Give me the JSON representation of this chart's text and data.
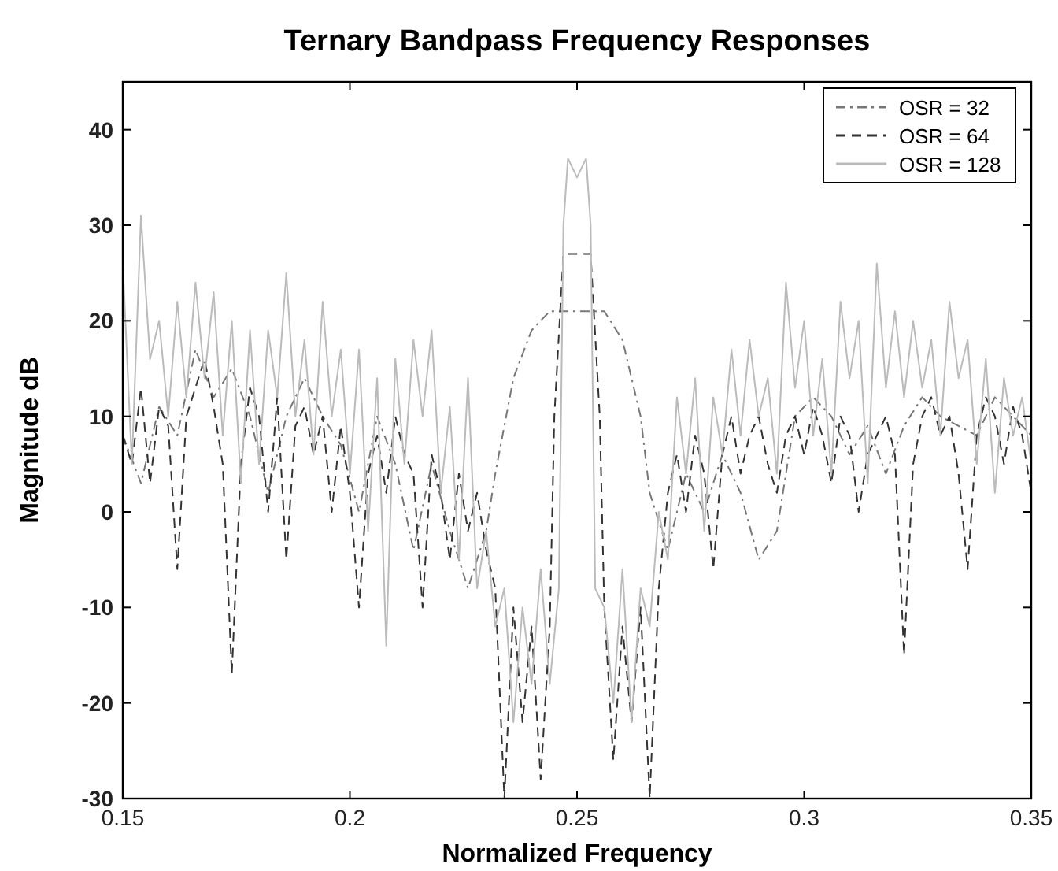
{
  "chart_data": {
    "type": "line",
    "title": "Ternary Bandpass Frequency Responses",
    "xlabel": "Normalized Frequency",
    "ylabel": "Magnitude dB",
    "xlim": [
      0.15,
      0.35
    ],
    "xticks": [
      0.15,
      0.2,
      0.25,
      0.3,
      0.35
    ],
    "ylim": [
      -30,
      45
    ],
    "yticks": [
      -30,
      -20,
      -10,
      0,
      10,
      20,
      30,
      40
    ],
    "grid": false,
    "legend": "top right",
    "series": [
      {
        "name": "OSR = 32",
        "color": "#777777",
        "line_style": "dashdot",
        "x": [
          0.15,
          0.154,
          0.158,
          0.162,
          0.166,
          0.17,
          0.174,
          0.178,
          0.182,
          0.186,
          0.19,
          0.194,
          0.198,
          0.202,
          0.206,
          0.21,
          0.214,
          0.218,
          0.222,
          0.226,
          0.23,
          0.232,
          0.236,
          0.24,
          0.244,
          0.25,
          0.256,
          0.26,
          0.264,
          0.266,
          0.27,
          0.274,
          0.278,
          0.282,
          0.286,
          0.29,
          0.294,
          0.298,
          0.302,
          0.306,
          0.31,
          0.314,
          0.318,
          0.322,
          0.326,
          0.33,
          0.334,
          0.338,
          0.342,
          0.346,
          0.35
        ],
        "values": [
          8,
          3,
          11,
          8,
          17,
          12,
          15,
          10,
          2,
          10,
          14,
          10,
          7,
          0,
          10,
          5,
          -4,
          5,
          -2,
          -8,
          -2,
          4,
          14,
          19,
          21,
          21,
          21,
          18,
          10,
          2,
          -4,
          4,
          0,
          6,
          2,
          -5,
          -2,
          10,
          12,
          10,
          6,
          9,
          4,
          9,
          12,
          10,
          9,
          8,
          12,
          10,
          8
        ]
      },
      {
        "name": "OSR = 64",
        "color": "#333333",
        "line_style": "dashed",
        "x": [
          0.15,
          0.152,
          0.154,
          0.156,
          0.158,
          0.16,
          0.162,
          0.164,
          0.166,
          0.168,
          0.17,
          0.172,
          0.174,
          0.176,
          0.178,
          0.18,
          0.182,
          0.184,
          0.186,
          0.188,
          0.19,
          0.192,
          0.194,
          0.196,
          0.198,
          0.2,
          0.202,
          0.204,
          0.206,
          0.208,
          0.21,
          0.212,
          0.214,
          0.216,
          0.218,
          0.22,
          0.222,
          0.224,
          0.226,
          0.228,
          0.23,
          0.232,
          0.234,
          0.236,
          0.238,
          0.24,
          0.242,
          0.244,
          0.245,
          0.247,
          0.25,
          0.253,
          0.255,
          0.256,
          0.258,
          0.26,
          0.262,
          0.264,
          0.266,
          0.268,
          0.27,
          0.272,
          0.274,
          0.276,
          0.278,
          0.28,
          0.282,
          0.284,
          0.286,
          0.288,
          0.29,
          0.292,
          0.294,
          0.296,
          0.298,
          0.3,
          0.302,
          0.304,
          0.306,
          0.308,
          0.31,
          0.312,
          0.314,
          0.316,
          0.318,
          0.32,
          0.322,
          0.324,
          0.326,
          0.328,
          0.33,
          0.332,
          0.334,
          0.336,
          0.338,
          0.34,
          0.342,
          0.344,
          0.346,
          0.348,
          0.35
        ],
        "values": [
          8,
          5,
          13,
          3,
          11,
          9,
          -6,
          10,
          13,
          16,
          11,
          5,
          -17,
          5,
          13,
          10,
          0,
          12,
          -5,
          9,
          11,
          6,
          10,
          0,
          9,
          2,
          -10,
          4,
          8,
          2,
          10,
          6,
          4,
          -10,
          6,
          2,
          -5,
          4,
          -2,
          2,
          -4,
          -8,
          -30,
          -10,
          -22,
          -12,
          -28,
          -12,
          10,
          27,
          27,
          27,
          10,
          -10,
          -26,
          -12,
          -22,
          -10,
          -30,
          -8,
          2,
          6,
          0,
          8,
          4,
          -6,
          6,
          10,
          4,
          8,
          10,
          5,
          2,
          8,
          10,
          6,
          11,
          8,
          3,
          10,
          8,
          0,
          6,
          8,
          10,
          6,
          -15,
          5,
          10,
          12,
          8,
          10,
          4,
          -6,
          8,
          12,
          10,
          5,
          11,
          8,
          2
        ]
      },
      {
        "name": "OSR = 128",
        "color": "#bbbbbb",
        "line_style": "solid",
        "x": [
          0.15,
          0.152,
          0.154,
          0.156,
          0.158,
          0.16,
          0.162,
          0.164,
          0.166,
          0.168,
          0.17,
          0.172,
          0.174,
          0.176,
          0.178,
          0.18,
          0.182,
          0.184,
          0.186,
          0.188,
          0.19,
          0.192,
          0.194,
          0.196,
          0.198,
          0.2,
          0.202,
          0.204,
          0.206,
          0.208,
          0.21,
          0.212,
          0.214,
          0.216,
          0.218,
          0.22,
          0.222,
          0.224,
          0.226,
          0.228,
          0.23,
          0.232,
          0.234,
          0.236,
          0.238,
          0.24,
          0.242,
          0.244,
          0.246,
          0.247,
          0.248,
          0.25,
          0.252,
          0.253,
          0.254,
          0.256,
          0.258,
          0.26,
          0.262,
          0.264,
          0.266,
          0.268,
          0.27,
          0.272,
          0.274,
          0.276,
          0.278,
          0.28,
          0.282,
          0.284,
          0.286,
          0.288,
          0.29,
          0.292,
          0.294,
          0.296,
          0.298,
          0.3,
          0.302,
          0.304,
          0.306,
          0.308,
          0.31,
          0.312,
          0.314,
          0.316,
          0.318,
          0.32,
          0.322,
          0.324,
          0.326,
          0.328,
          0.33,
          0.332,
          0.334,
          0.336,
          0.338,
          0.34,
          0.342,
          0.344,
          0.346,
          0.348,
          0.35
        ],
        "values": [
          26,
          5,
          31,
          16,
          20,
          10,
          22,
          12,
          24,
          14,
          23,
          8,
          20,
          3,
          19,
          5,
          19,
          12,
          25,
          10,
          18,
          6,
          22,
          10,
          17,
          4,
          17,
          -2,
          14,
          -14,
          16,
          5,
          18,
          10,
          19,
          2,
          11,
          -5,
          14,
          -8,
          -2,
          -12,
          -8,
          -22,
          -10,
          -18,
          -6,
          -18,
          -8,
          30,
          37,
          35,
          37,
          30,
          -8,
          -10,
          -20,
          -6,
          -22,
          -8,
          -12,
          0,
          -5,
          12,
          4,
          14,
          -2,
          12,
          6,
          17,
          8,
          18,
          10,
          14,
          4,
          24,
          13,
          20,
          8,
          16,
          4,
          22,
          14,
          20,
          3,
          26,
          13,
          21,
          12,
          20,
          13,
          18,
          8,
          22,
          14,
          18,
          5,
          16,
          2,
          14,
          8,
          12,
          5
        ]
      }
    ]
  }
}
